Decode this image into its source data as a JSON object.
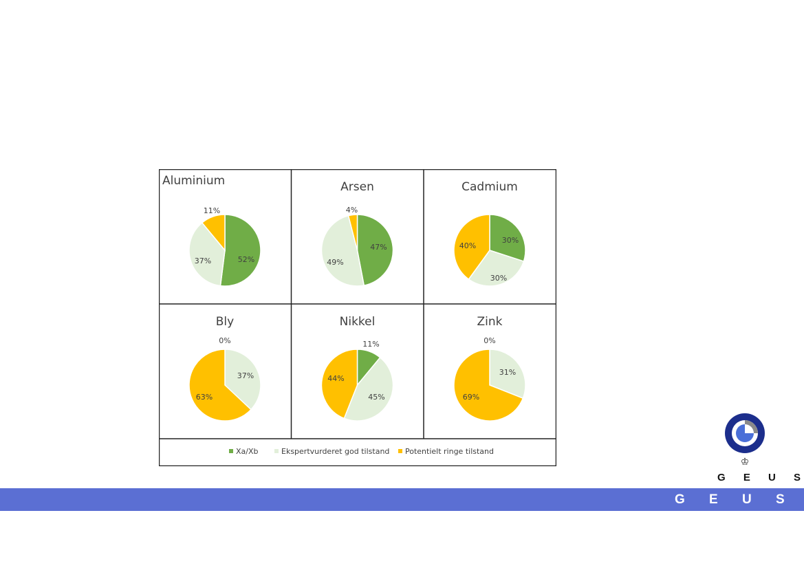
{
  "colors": {
    "xa_xb": "#70ad47",
    "god": "#e2efda",
    "ringe": "#ffc000",
    "footer": "#5b6fd3"
  },
  "legend": [
    {
      "label": "Xa/Xb",
      "color": "#70ad47"
    },
    {
      "label": "Ekspertvurderet god tilstand",
      "color": "#e2efda"
    },
    {
      "label": "Potentielt ringe tilstand",
      "color": "#ffc000"
    }
  ],
  "chart_data": [
    {
      "type": "pie",
      "title": "Aluminium",
      "categories": [
        "Xa/Xb",
        "Ekspertvurderet god tilstand",
        "Potentielt ringe tilstand"
      ],
      "values": [
        52,
        37,
        11
      ],
      "labels": [
        "52%",
        "37%",
        "11%"
      ]
    },
    {
      "type": "pie",
      "title": "Arsen",
      "categories": [
        "Xa/Xb",
        "Ekspertvurderet god tilstand",
        "Potentielt ringe tilstand"
      ],
      "values": [
        47,
        49,
        4
      ],
      "labels": [
        "47%",
        "49%",
        "4%"
      ]
    },
    {
      "type": "pie",
      "title": "Cadmium",
      "categories": [
        "Xa/Xb",
        "Ekspertvurderet god tilstand",
        "Potentielt ringe tilstand"
      ],
      "values": [
        30,
        30,
        40
      ],
      "labels": [
        "30%",
        "30%",
        "40%"
      ]
    },
    {
      "type": "pie",
      "title": "Bly",
      "categories": [
        "Xa/Xb",
        "Ekspertvurderet god tilstand",
        "Potentielt ringe tilstand"
      ],
      "values": [
        0,
        37,
        63
      ],
      "labels": [
        "0%",
        "37%",
        "63%"
      ]
    },
    {
      "type": "pie",
      "title": "Nikkel",
      "categories": [
        "Xa/Xb",
        "Ekspertvurderet god tilstand",
        "Potentielt ringe tilstand"
      ],
      "values": [
        11,
        45,
        44
      ],
      "labels": [
        "11%",
        "45%",
        "44%"
      ]
    },
    {
      "type": "pie",
      "title": "Zink",
      "categories": [
        "Xa/Xb",
        "Ekspertvurderet god tilstand",
        "Potentielt ringe tilstand"
      ],
      "values": [
        0,
        31,
        69
      ],
      "labels": [
        "0%",
        "31%",
        "69%"
      ]
    }
  ],
  "logo": {
    "text": "G E U S",
    "crown": "♔"
  },
  "footer": {
    "text": "G E U S"
  }
}
